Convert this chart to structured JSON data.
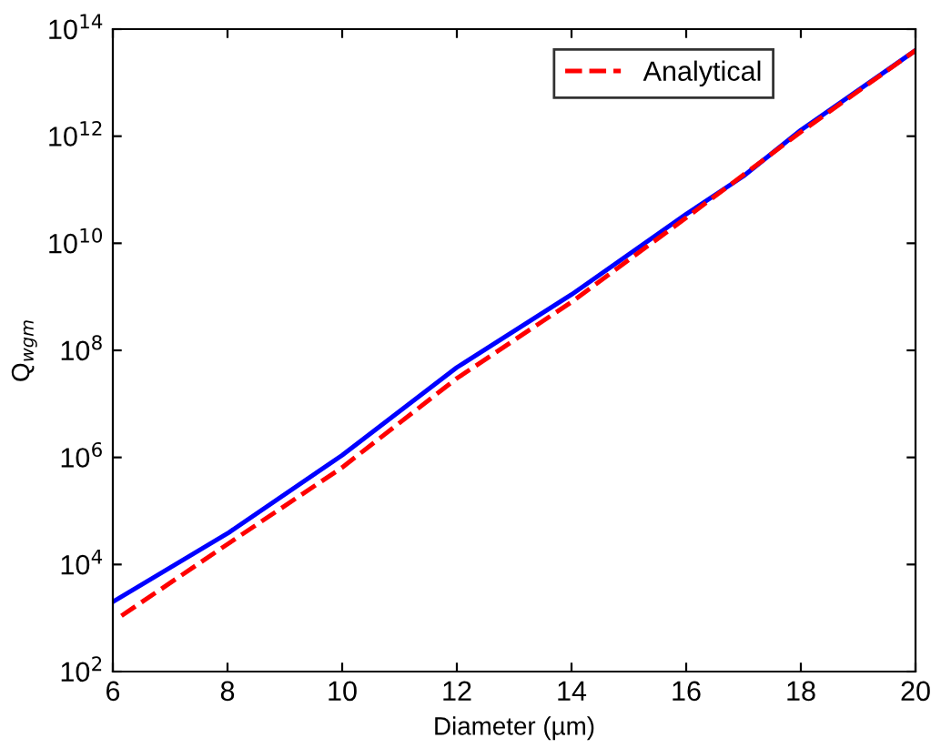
{
  "chart_data": {
    "type": "line",
    "xlabel": "Diameter (µm)",
    "ylabel": "Q$_{wgm}$",
    "log": "y",
    "xlim": [
      6,
      20
    ],
    "xticks": [
      6,
      8,
      10,
      12,
      14,
      16,
      18,
      20
    ],
    "ylim": [
      100,
      100000000000000.0
    ],
    "yticks": [
      {
        "value": 100,
        "label": "10$^{2}$"
      },
      {
        "value": 10000,
        "label": "10$^{4}$"
      },
      {
        "value": 1000000,
        "label": "10$^{6}$"
      },
      {
        "value": 100000000,
        "label": "10$^{8}$"
      },
      {
        "value": 10000000000,
        "label": "10$^{10}$"
      },
      {
        "value": 1000000000000,
        "label": "10$^{12}$"
      },
      {
        "value": 100000000000000,
        "label": "10$^{14}$"
      }
    ],
    "grid": false,
    "legend": "top right",
    "series": [
      {
        "color": "#0000ff",
        "line_style": "solid",
        "x": [
          6,
          8,
          10,
          12,
          14,
          16,
          17,
          18,
          20
        ],
        "values": [
          2000,
          38000,
          1100000,
          48000000,
          1100000000,
          35000000000,
          180000000000,
          1300000000000,
          40000000000000
        ]
      },
      {
        "name": "Analytical",
        "color": "#ff0000",
        "line_style": "dashed",
        "x": [
          6.15,
          8,
          10,
          12,
          14,
          16,
          18,
          20
        ],
        "values": [
          1100,
          24000,
          650000,
          30000000,
          800000000,
          30000000000,
          1200000000000,
          40000000000000
        ]
      }
    ]
  }
}
